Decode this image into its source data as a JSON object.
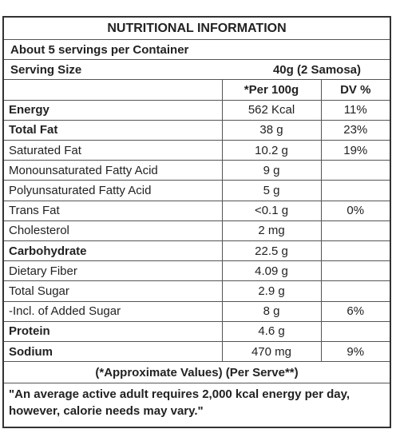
{
  "title": "NUTRITIONAL INFORMATION",
  "servings_per_container": "About 5 servings per Container",
  "serving_size": {
    "label": "Serving Size",
    "value": "40g (2 Samosa)"
  },
  "columns": {
    "nutrient": "",
    "per_100g": "*Per 100g",
    "dv": "DV %"
  },
  "rows": [
    {
      "name": "Energy",
      "per_100g": "562 Kcal",
      "dv": "11%",
      "bold": true
    },
    {
      "name": "Total Fat",
      "per_100g": "38 g",
      "dv": "23%",
      "bold": true
    },
    {
      "name": "Saturated Fat",
      "per_100g": "10.2 g",
      "dv": "19%",
      "bold": false
    },
    {
      "name": "Monounsaturated Fatty Acid",
      "per_100g": "9 g",
      "dv": "",
      "bold": false
    },
    {
      "name": "Polyunsaturated Fatty Acid",
      "per_100g": "5 g",
      "dv": "",
      "bold": false
    },
    {
      "name": "Trans Fat",
      "per_100g": "<0.1 g",
      "dv": "0%",
      "bold": false
    },
    {
      "name": "Cholesterol",
      "per_100g": "2 mg",
      "dv": "",
      "bold": false
    },
    {
      "name": "Carbohydrate",
      "per_100g": "22.5 g",
      "dv": "",
      "bold": true
    },
    {
      "name": "Dietary Fiber",
      "per_100g": "4.09 g",
      "dv": "",
      "bold": false
    },
    {
      "name": "Total Sugar",
      "per_100g": "2.9 g",
      "dv": "",
      "bold": false
    },
    {
      "name": "-Incl. of Added Sugar",
      "per_100g": "8 g",
      "dv": "6%",
      "bold": false
    },
    {
      "name": "Protein",
      "per_100g": "4.6 g",
      "dv": "",
      "bold": true
    },
    {
      "name": "Sodium",
      "per_100g": "470 mg",
      "dv": "9%",
      "bold": true
    }
  ],
  "approx_note": "(*Approximate Values) (Per Serve**)",
  "footer_note": "\"An average active adult requires 2,000 kcal energy per day, however, calorie needs may vary.\""
}
